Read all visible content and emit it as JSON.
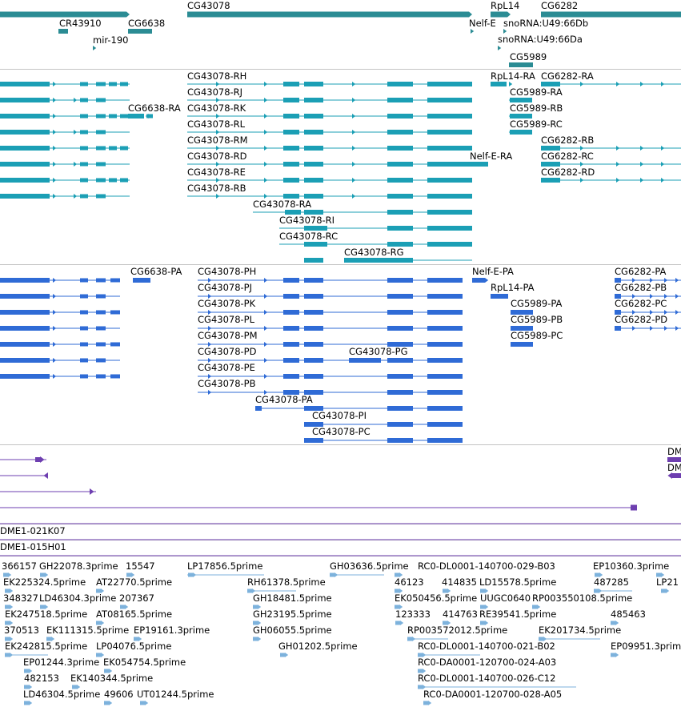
{
  "colors": {
    "gene": "#2b8c94",
    "transcript": "#1b9fb5",
    "protein": "#2f6bd6",
    "clone": "#6e3fb0",
    "est": "#7db2dc",
    "separator": "#c4c4c4"
  },
  "tracks": {
    "genes": [
      {
        "label": "CG43078"
      },
      {
        "label": "RpL14"
      },
      {
        "label": "CG6282"
      },
      {
        "label": "CR43910"
      },
      {
        "label": "CG6638"
      },
      {
        "label": "Nelf-E"
      },
      {
        "label": "snoRNA:U49:66Db"
      },
      {
        "label": "mir-190"
      },
      {
        "label": "snoRNA:U49:66Da"
      },
      {
        "label": "CG5989"
      }
    ],
    "transcripts": [
      {
        "label": "CG43078-RH"
      },
      {
        "label": "RpL14-RA"
      },
      {
        "label": "CG6282-RA"
      },
      {
        "label": "CG43078-RJ"
      },
      {
        "label": "CG5989-RA"
      },
      {
        "label": "CG6638-RA"
      },
      {
        "label": "CG43078-RK"
      },
      {
        "label": "CG5989-RB"
      },
      {
        "label": "CG43078-RL"
      },
      {
        "label": "CG5989-RC"
      },
      {
        "label": "CG43078-RM"
      },
      {
        "label": "CG6282-RB"
      },
      {
        "label": "CG43078-RD"
      },
      {
        "label": "Nelf-E-RA"
      },
      {
        "label": "CG6282-RC"
      },
      {
        "label": "CG43078-RE"
      },
      {
        "label": "CG6282-RD"
      },
      {
        "label": "CG43078-RB"
      },
      {
        "label": "CG43078-RA"
      },
      {
        "label": "CG43078-RI"
      },
      {
        "label": "CG43078-RC"
      },
      {
        "label": "CG43078-RG"
      }
    ],
    "proteins": [
      {
        "label": "CG6638-PA"
      },
      {
        "label": "CG43078-PH"
      },
      {
        "label": "Nelf-E-PA"
      },
      {
        "label": "CG6282-PA"
      },
      {
        "label": "CG43078-PJ"
      },
      {
        "label": "RpL14-PA"
      },
      {
        "label": "CG6282-PB"
      },
      {
        "label": "CG43078-PK"
      },
      {
        "label": "CG5989-PA"
      },
      {
        "label": "CG6282-PC"
      },
      {
        "label": "CG43078-PL"
      },
      {
        "label": "CG5989-PB"
      },
      {
        "label": "CG6282-PD"
      },
      {
        "label": "CG43078-PM"
      },
      {
        "label": "CG5989-PC"
      },
      {
        "label": "CG43078-PD"
      },
      {
        "label": "CG43078-PG"
      },
      {
        "label": "CG43078-PE"
      },
      {
        "label": "CG43078-PB"
      },
      {
        "label": "CG43078-PA"
      },
      {
        "label": "CG43078-PI"
      },
      {
        "label": "CG43078-PC"
      }
    ],
    "clones": [
      {
        "label": "DM"
      },
      {
        "label": "DM"
      },
      {
        "label": "DME1-021K07"
      },
      {
        "label": "DME1-015H01"
      }
    ],
    "ests": [
      {
        "label": "366157"
      },
      {
        "label": "GH22078.3prime"
      },
      {
        "label": "15547"
      },
      {
        "label": "LP17856.5prime"
      },
      {
        "label": "GH03636.5prime"
      },
      {
        "label": "RC0-DL0001-140700-029-B03"
      },
      {
        "label": "EP10360.3prime"
      },
      {
        "label": "EK225324.5prime"
      },
      {
        "label": "AT22770.5prime"
      },
      {
        "label": "RH61378.5prime"
      },
      {
        "label": "46123"
      },
      {
        "label": "414835"
      },
      {
        "label": "LD15578.5prime"
      },
      {
        "label": "487285"
      },
      {
        "label": "LP21"
      },
      {
        "label": "348327"
      },
      {
        "label": "LD46304.3prime"
      },
      {
        "label": "207367"
      },
      {
        "label": "GH18481.5prime"
      },
      {
        "label": "EK050456.5prime"
      },
      {
        "label": "UUGC0640"
      },
      {
        "label": "RP003550108.5prime"
      },
      {
        "label": "EK247518.5prime"
      },
      {
        "label": "AT08165.5prime"
      },
      {
        "label": "GH23195.5prime"
      },
      {
        "label": "123333"
      },
      {
        "label": "414763"
      },
      {
        "label": "RE39541.5prime"
      },
      {
        "label": "485463"
      },
      {
        "label": "370513"
      },
      {
        "label": "EK111315.5prime"
      },
      {
        "label": "EP19161.3prime"
      },
      {
        "label": "GH06055.5prime"
      },
      {
        "label": "RP003572012.5prime"
      },
      {
        "label": "EK201734.5prime"
      },
      {
        "label": "EK242815.5prime"
      },
      {
        "label": "LP04076.5prime"
      },
      {
        "label": "GH01202.5prime"
      },
      {
        "label": "RC0-DL0001-140700-021-B02"
      },
      {
        "label": "EP09951.3prime"
      },
      {
        "label": "EP01244.3prime"
      },
      {
        "label": "EK054754.5prime"
      },
      {
        "label": "RC0-DA0001-120700-024-A03"
      },
      {
        "label": "482153"
      },
      {
        "label": "EK140344.5prime"
      },
      {
        "label": "RC0-DL0001-140700-026-C12"
      },
      {
        "label": "LD46304.5prime"
      },
      {
        "label": "49606"
      },
      {
        "label": "UT01244.5prime"
      },
      {
        "label": "RC0-DA0001-120700-028-A05"
      }
    ]
  }
}
